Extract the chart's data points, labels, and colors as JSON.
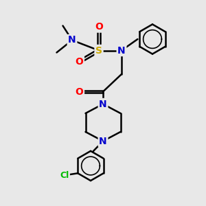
{
  "bg_color": "#e8e8e8",
  "atom_colors": {
    "C": "#000000",
    "N": "#0000cc",
    "O": "#ff0000",
    "S": "#ccaa00",
    "Cl": "#00bb00",
    "H": "#000000"
  },
  "bond_color": "#000000",
  "bond_width": 1.8,
  "font_size": 9
}
